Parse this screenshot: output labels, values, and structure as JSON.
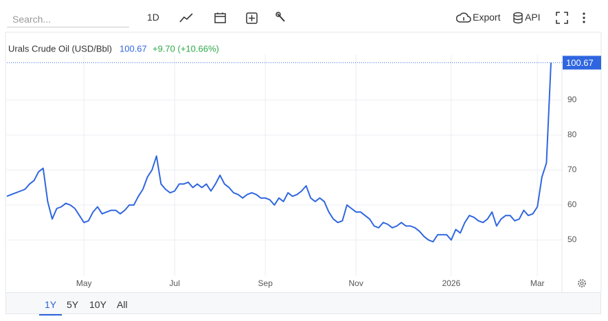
{
  "toolbar": {
    "search_placeholder": "Search...",
    "interval": "1D",
    "export": "Export",
    "api": "API"
  },
  "ranges": [
    "1Y",
    "5Y",
    "10Y",
    "All"
  ],
  "chart_data": {
    "type": "line",
    "title": "Urals Crude Oil (USD/Bbl)",
    "change": "+9.70 (+10.66%)",
    "categories": [
      null,
      null,
      null,
      null,
      null,
      null,
      null,
      null,
      null,
      null,
      null,
      null,
      null,
      null,
      null,
      null,
      null,
      "May",
      null,
      null,
      null,
      null,
      null,
      null,
      null,
      null,
      null,
      null,
      null,
      null,
      null,
      null,
      null,
      null,
      null,
      null,
      null,
      "Jul",
      null,
      null,
      null,
      null,
      null,
      null,
      null,
      null,
      null,
      null,
      null,
      null,
      null,
      null,
      null,
      null,
      null,
      null,
      null,
      "Sep",
      null,
      null,
      null,
      null,
      null,
      null,
      null,
      null,
      null,
      null,
      null,
      null,
      null,
      null,
      null,
      null,
      null,
      null,
      null,
      "Nov",
      null,
      null,
      null,
      null,
      null,
      null,
      null,
      null,
      null,
      null,
      null,
      null,
      null,
      null,
      null,
      null,
      null,
      null,
      null,
      null,
      "2026",
      null,
      null,
      null,
      null,
      null,
      null,
      null,
      null,
      null,
      null,
      null,
      null,
      null,
      null,
      null,
      null,
      null,
      null,
      "Mar",
      null,
      null,
      null
    ],
    "values": [
      62.5,
      63,
      63.5,
      64,
      64.5,
      66,
      67,
      69.5,
      70.5,
      61,
      56,
      59,
      59.5,
      60.5,
      60,
      59,
      57,
      55,
      55.5,
      58,
      59.5,
      57.5,
      58,
      58.5,
      58.5,
      57.5,
      58.5,
      60,
      60,
      62.5,
      64.5,
      68,
      70,
      74,
      66,
      64.5,
      63.5,
      64,
      66,
      66,
      66.5,
      65,
      66,
      65,
      66,
      64,
      66,
      68.5,
      66,
      65,
      63.5,
      63,
      62,
      63,
      63.5,
      63,
      62,
      62,
      61.5,
      60,
      62,
      61,
      63.5,
      62.5,
      63,
      64,
      65.5,
      62,
      61,
      62,
      61,
      58,
      56,
      55,
      55.5,
      60,
      59,
      58,
      58,
      57,
      56,
      54,
      53.5,
      55,
      54.5,
      53.5,
      54,
      55,
      54,
      54,
      53.5,
      52.5,
      51,
      50,
      49.5,
      51.5,
      51.5,
      51.5,
      50,
      53,
      52,
      55,
      57,
      56.5,
      55.5,
      55,
      56,
      58,
      54,
      56,
      57,
      57,
      55.5,
      56,
      58.5,
      57,
      57.5,
      59.5,
      68,
      72,
      100.67
    ],
    "color": "#2f66e0",
    "change_color": "#2ea84a",
    "ylim": [
      39.8,
      102.9
    ],
    "yticks": [
      50,
      60,
      70,
      80,
      90
    ],
    "grid": true
  }
}
